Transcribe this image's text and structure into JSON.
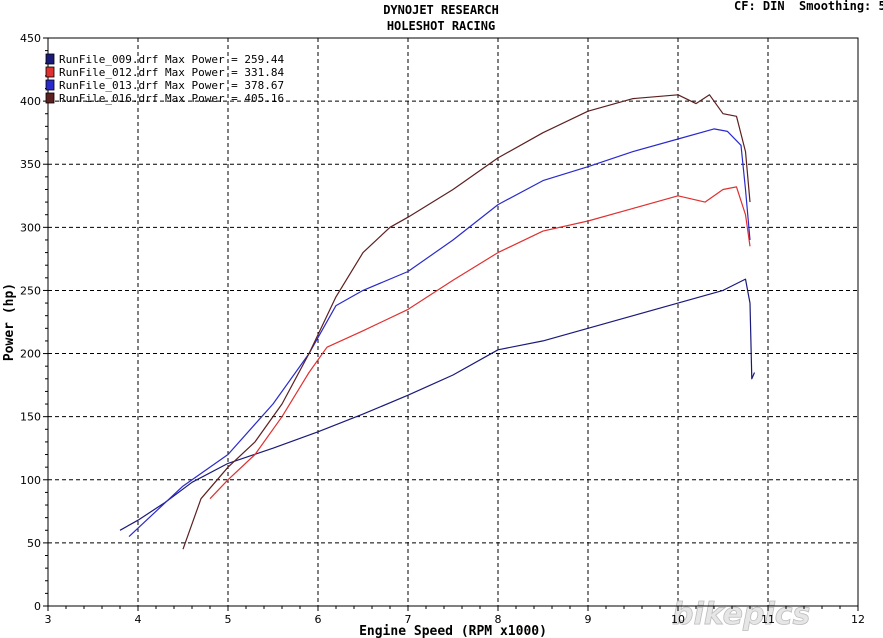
{
  "header": {
    "title_line1": "DYNOJET RESEARCH",
    "title_line2": "HOLESHOT RACING",
    "settings": "CF: DIN  Smoothing: 5"
  },
  "watermark": "bikepics",
  "chart_data": {
    "type": "line",
    "xlabel": "Engine Speed (RPM x1000)",
    "ylabel": "Power (hp)",
    "xlim": [
      3,
      12
    ],
    "ylim": [
      0,
      450
    ],
    "xticks": [
      3,
      4,
      5,
      6,
      7,
      8,
      9,
      10,
      11,
      12
    ],
    "yticks": [
      0,
      50,
      100,
      150,
      200,
      250,
      300,
      350,
      400,
      450
    ],
    "grid": true,
    "legend_position": "top-left",
    "series": [
      {
        "name": "RunFile_009.drf Max Power = 259.44",
        "color": "#1a1a7a",
        "x": [
          3.8,
          4.0,
          4.3,
          4.6,
          5.0,
          5.5,
          6.0,
          6.5,
          7.0,
          7.5,
          8.0,
          8.5,
          9.0,
          9.5,
          10.0,
          10.5,
          10.75,
          10.8,
          10.82,
          10.85
        ],
        "y": [
          60,
          68,
          82,
          98,
          113,
          125,
          138,
          152,
          167,
          183,
          203,
          210,
          220,
          230,
          240,
          250,
          259,
          240,
          180,
          185
        ]
      },
      {
        "name": "RunFile_012.drf Max Power = 331.84",
        "color": "#e03030",
        "x": [
          4.8,
          5.0,
          5.3,
          5.6,
          5.9,
          6.1,
          6.5,
          7.0,
          7.5,
          8.0,
          8.5,
          9.0,
          9.5,
          10.0,
          10.3,
          10.5,
          10.65,
          10.75,
          10.8
        ],
        "y": [
          85,
          100,
          120,
          150,
          185,
          205,
          218,
          235,
          258,
          280,
          297,
          305,
          315,
          325,
          320,
          330,
          332,
          310,
          285
        ]
      },
      {
        "name": "RunFile_013.drf Max Power = 378.67",
        "color": "#2a2acc",
        "x": [
          3.9,
          4.2,
          4.5,
          5.0,
          5.5,
          5.9,
          6.2,
          6.5,
          7.0,
          7.5,
          8.0,
          8.5,
          9.0,
          9.5,
          10.0,
          10.4,
          10.55,
          10.7,
          10.75,
          10.8
        ],
        "y": [
          55,
          75,
          95,
          120,
          160,
          200,
          238,
          250,
          265,
          290,
          318,
          337,
          348,
          360,
          370,
          378,
          376,
          365,
          330,
          290
        ]
      },
      {
        "name": "RunFile_016.drf Max Power = 405.16",
        "color": "#5c2020",
        "x": [
          4.5,
          4.7,
          5.0,
          5.3,
          5.6,
          5.9,
          6.2,
          6.5,
          6.8,
          7.0,
          7.5,
          8.0,
          8.5,
          9.0,
          9.5,
          10.0,
          10.2,
          10.35,
          10.5,
          10.65,
          10.75,
          10.8
        ],
        "y": [
          45,
          85,
          110,
          130,
          160,
          200,
          245,
          280,
          300,
          308,
          330,
          355,
          375,
          392,
          402,
          405,
          398,
          405,
          390,
          388,
          360,
          320
        ]
      }
    ]
  }
}
